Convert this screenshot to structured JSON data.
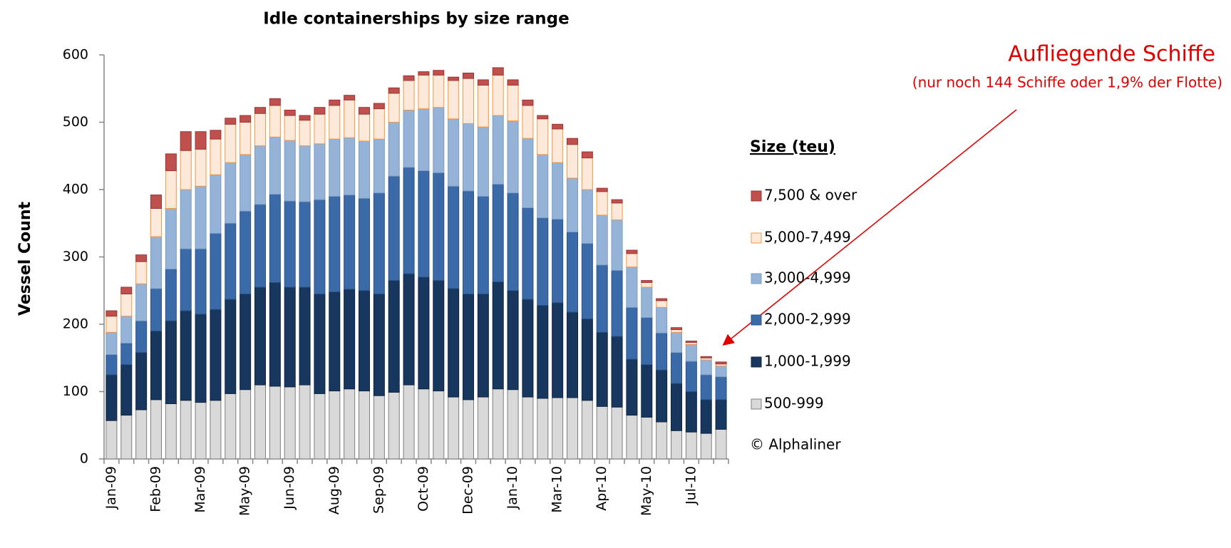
{
  "chart_data": {
    "type": "stacked_bar",
    "title": "Idle containerships by size range",
    "y_label": "Vessel Count",
    "legend_title": "Size (teu)",
    "source": "© Alphaliner",
    "annotation_title": "Aufliegende Schiffe",
    "annotation_text": "(nur noch 144 Schiffe oder 1,9% der Flotte)",
    "categories": [
      "Jan-09",
      null,
      null,
      "Feb-09",
      null,
      null,
      "Mar-09",
      null,
      null,
      "May-09",
      null,
      null,
      "Jun-09",
      null,
      null,
      "Aug-09",
      null,
      null,
      "Sep-09",
      null,
      null,
      "Oct-09",
      null,
      null,
      "Dec-09",
      null,
      null,
      "Jan-10",
      null,
      null,
      "Mar-10",
      null,
      null,
      "Apr-10",
      null,
      null,
      "May-10",
      null,
      null,
      "Jul-10",
      null,
      null
    ],
    "ylim": [
      0,
      600
    ],
    "yticks": [
      0,
      100,
      200,
      300,
      400,
      500,
      600
    ],
    "series": [
      {
        "name": "500-999",
        "color": "#d9d9d9",
        "values": [
          57,
          65,
          73,
          88,
          82,
          87,
          84,
          87,
          97,
          103,
          110,
          108,
          107,
          110,
          97,
          101,
          104,
          101,
          94,
          99,
          110,
          104,
          101,
          92,
          88,
          92,
          104,
          103,
          92,
          90,
          91,
          91,
          87,
          78,
          77,
          65,
          62,
          55,
          42,
          40,
          38,
          44
        ]
      },
      {
        "name": "1,000-1,999",
        "color": "#17375e",
        "values": [
          68,
          75,
          85,
          102,
          123,
          133,
          131,
          135,
          140,
          142,
          145,
          154,
          148,
          145,
          148,
          147,
          148,
          149,
          151,
          166,
          165,
          166,
          164,
          161,
          157,
          153,
          159,
          147,
          145,
          138,
          141,
          127,
          121,
          110,
          105,
          83,
          78,
          77,
          70,
          60,
          50,
          44
        ]
      },
      {
        "name": "2,000-2,999",
        "color": "#3b6aa8",
        "values": [
          30,
          32,
          47,
          63,
          77,
          92,
          97,
          113,
          113,
          123,
          123,
          131,
          128,
          127,
          140,
          142,
          140,
          137,
          150,
          155,
          158,
          158,
          160,
          152,
          153,
          145,
          145,
          145,
          136,
          130,
          124,
          119,
          112,
          100,
          98,
          77,
          70,
          55,
          46,
          45,
          37,
          34
        ]
      },
      {
        "name": "3,000-4,999",
        "color": "#95b3d7",
        "values": [
          33,
          40,
          55,
          77,
          90,
          88,
          93,
          87,
          90,
          84,
          87,
          85,
          90,
          83,
          83,
          85,
          85,
          85,
          80,
          80,
          85,
          92,
          97,
          100,
          100,
          103,
          102,
          107,
          103,
          94,
          84,
          80,
          80,
          74,
          75,
          60,
          45,
          38,
          30,
          25,
          22,
          16
        ]
      },
      {
        "name": "5,000-7,499",
        "color": "#fde9d9",
        "values": [
          24,
          33,
          33,
          42,
          56,
          58,
          55,
          53,
          57,
          48,
          48,
          47,
          37,
          38,
          44,
          50,
          56,
          40,
          45,
          43,
          44,
          50,
          48,
          57,
          67,
          62,
          60,
          53,
          49,
          53,
          50,
          50,
          47,
          35,
          25,
          20,
          7,
          10,
          4,
          3,
          3,
          3
        ]
      },
      {
        "name": "7,500 & over",
        "color": "#c0504d",
        "values": [
          8,
          10,
          10,
          20,
          25,
          28,
          26,
          13,
          9,
          10,
          9,
          10,
          8,
          7,
          10,
          8,
          7,
          10,
          8,
          8,
          7,
          5,
          7,
          5,
          8,
          8,
          11,
          8,
          8,
          5,
          7,
          9,
          9,
          5,
          5,
          5,
          3,
          3,
          3,
          2,
          2,
          3
        ]
      }
    ]
  }
}
